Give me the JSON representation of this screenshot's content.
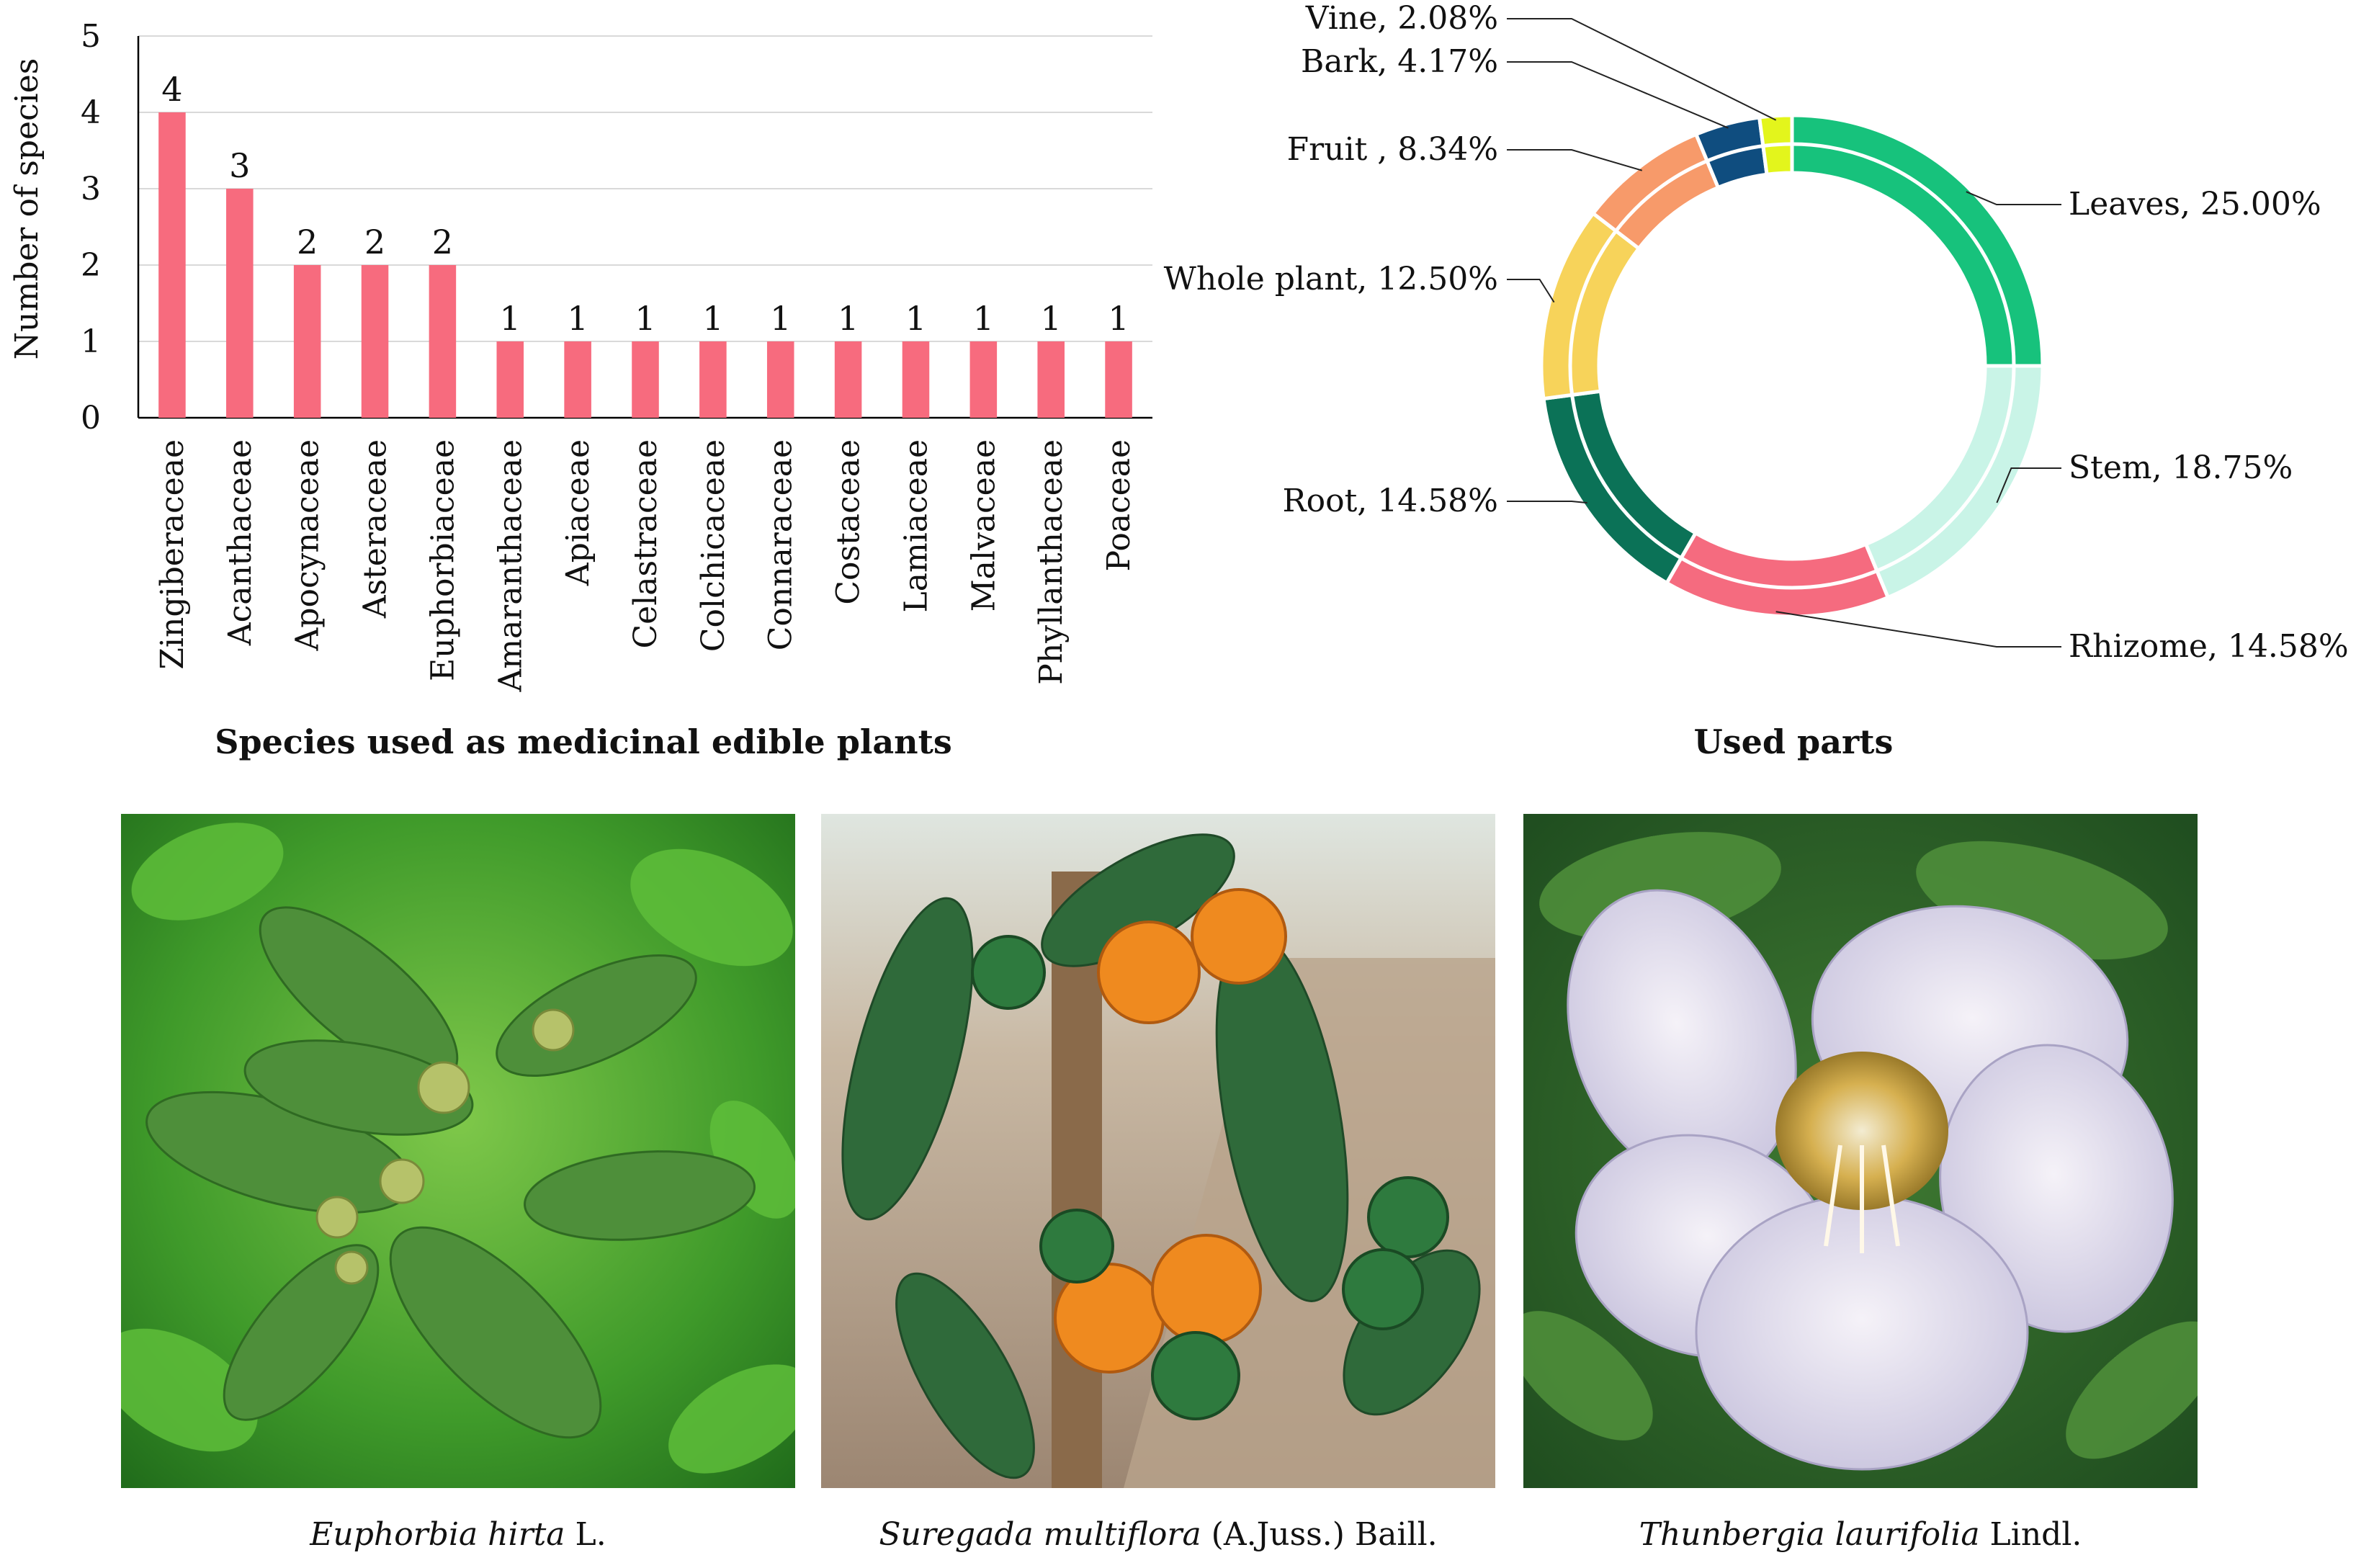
{
  "chart_data": [
    {
      "type": "bar",
      "title": "",
      "caption": "Species used as medicinal edible plants",
      "ylabel": "Number of species",
      "xlabel": "",
      "ylim": [
        0,
        5
      ],
      "yticks": [
        "0",
        "1",
        "2",
        "3",
        "4",
        "5"
      ],
      "grid": true,
      "color": "#f76b7e",
      "categories": [
        "Zingiberaceae",
        "Acanthaceae",
        "Apocynaceae",
        "Asteraceae",
        "Euphorbiaceae",
        "Amaranthaceae",
        "Apiaceae",
        "Celastraceae",
        "Colchicaceae",
        "Connaraceae",
        "Costaceae",
        "Lamiaceae",
        "Malvaceae",
        "Phyllanthaceae",
        "Poaceae"
      ],
      "values": [
        4,
        3,
        2,
        2,
        2,
        1,
        1,
        1,
        1,
        1,
        1,
        1,
        1,
        1,
        1
      ],
      "data_labels": [
        "4",
        "3",
        "2",
        "2",
        "2",
        "1",
        "1",
        "1",
        "1",
        "1",
        "1",
        "1",
        "1",
        "1",
        "1"
      ]
    },
    {
      "type": "pie",
      "style": "donut",
      "title": "",
      "caption": "Used parts",
      "slices": [
        {
          "name": "Leaves",
          "value": 25.0,
          "label": "Leaves, 25.00%",
          "color": "#17c27c"
        },
        {
          "name": "Stem",
          "value": 18.75,
          "label": "Stem, 18.75%",
          "color": "#c9f4e7"
        },
        {
          "name": "Rhizome",
          "value": 14.58,
          "label": "Rhizome, 14.58%",
          "color": "#f56b7f"
        },
        {
          "name": "Root",
          "value": 14.58,
          "label": "Root, 14.58%",
          "color": "#0b7257"
        },
        {
          "name": "Whole plant",
          "value": 12.5,
          "label": "Whole plant, 12.50%",
          "color": "#f7d35a"
        },
        {
          "name": "Fruit",
          "value": 8.34,
          "label": "Fruit  , 8.34%",
          "color": "#f79a6a"
        },
        {
          "name": "Bark",
          "value": 4.17,
          "label": "Bark, 4.17%",
          "color": "#0f4d7f"
        },
        {
          "name": "Vine",
          "value": 2.08,
          "label": "Vine, 2.08%",
          "color": "#e3f51c"
        }
      ]
    }
  ],
  "photos": [
    {
      "species": "Euphorbia hirta",
      "authority": " L."
    },
    {
      "species": "Suregada multiflora",
      "authority": " (A.Juss.) Baill."
    },
    {
      "species": "Thunbergia laurifolia",
      "authority": " Lindl."
    }
  ]
}
